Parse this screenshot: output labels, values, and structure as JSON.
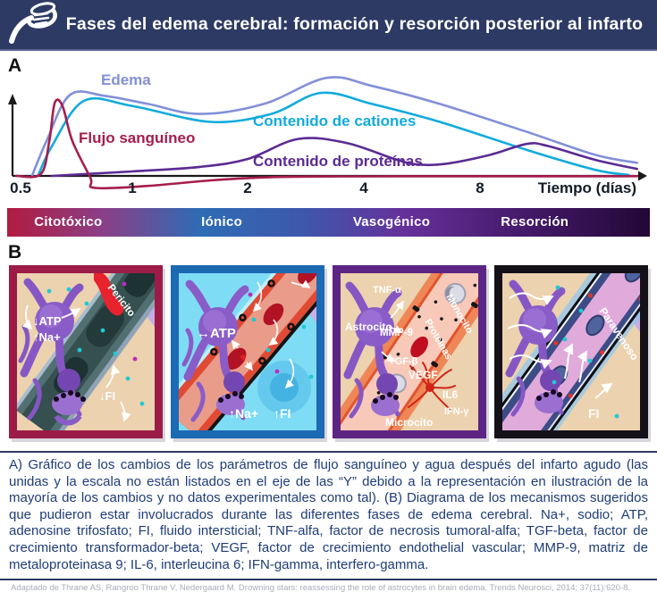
{
  "header": {
    "title": "Fases del edema cerebral: formación y resorción posterior al infarto",
    "logo": "swan-logo"
  },
  "panel_a_label": "A",
  "panel_b_label": "B",
  "chart_data": {
    "type": "line",
    "title": "",
    "x_axis": {
      "label": "Tiempo (días)",
      "scale": "log2",
      "ticks": [
        0.5,
        1,
        2,
        4,
        8
      ],
      "tick_labels": [
        "0.5",
        "1",
        "2",
        "4",
        "8"
      ],
      "range_days": [
        0.5,
        20.5
      ]
    },
    "y_axis": {
      "label": "",
      "note": "unidades y escala no mostradas (representación ilustrativa)",
      "range": [
        -0.15,
        1.05
      ]
    },
    "grid": false,
    "legend_position": "inline-labels",
    "series": [
      {
        "name": "Edema",
        "color": "#8290d8",
        "points": [
          [
            0.55,
            0
          ],
          [
            0.6,
            0.35
          ],
          [
            0.69,
            0.81
          ],
          [
            0.85,
            0.8
          ],
          [
            1.1,
            0.72
          ],
          [
            1.5,
            0.62
          ],
          [
            2.2,
            0.72
          ],
          [
            3.2,
            0.98
          ],
          [
            4.2,
            0.9
          ],
          [
            6.3,
            0.72
          ],
          [
            10.8,
            0.43
          ],
          [
            16,
            0.21
          ],
          [
            20.5,
            0.13
          ]
        ]
      },
      {
        "name": "Contenido de cationes",
        "color": "#11abdc",
        "points": [
          [
            0.57,
            0
          ],
          [
            0.62,
            0.3
          ],
          [
            0.75,
            0.75
          ],
          [
            1.0,
            0.7
          ],
          [
            1.6,
            0.54
          ],
          [
            2.3,
            0.62
          ],
          [
            3.1,
            0.83
          ],
          [
            4.2,
            0.72
          ],
          [
            6.3,
            0.54
          ],
          [
            10.8,
            0.25
          ],
          [
            16,
            0.06
          ],
          [
            19.5,
            0.01
          ]
        ]
      },
      {
        "name": "Contenido de proteínas",
        "color": "#5b2b93",
        "points": [
          [
            0.62,
            0
          ],
          [
            1.0,
            0.045
          ],
          [
            1.5,
            0.09
          ],
          [
            2.0,
            0.17
          ],
          [
            2.7,
            0.37
          ],
          [
            3.6,
            0.33
          ],
          [
            4.8,
            0.17
          ],
          [
            5.5,
            0.115
          ],
          [
            6.5,
            0.12
          ],
          [
            8.5,
            0.21
          ],
          [
            10.6,
            0.32
          ],
          [
            12,
            0.3
          ],
          [
            16,
            0.16
          ],
          [
            20.5,
            0.07
          ]
        ]
      },
      {
        "name": "Flujo sanguíneo",
        "color": "#a51d4d",
        "points": [
          [
            0.5,
            0
          ],
          [
            0.58,
            0.02
          ],
          [
            0.61,
            0.35
          ],
          [
            0.63,
            0.73
          ],
          [
            0.66,
            0.7
          ],
          [
            0.7,
            0.35
          ],
          [
            0.78,
            -0.02
          ],
          [
            0.8,
            -0.12
          ],
          [
            1.1,
            -0.1
          ],
          [
            1.6,
            -0.045
          ],
          [
            2.2,
            -0.015
          ],
          [
            3,
            -0.006
          ],
          [
            5,
            -0.004
          ],
          [
            10,
            -0.004
          ],
          [
            20.5,
            -0.003
          ]
        ]
      }
    ]
  },
  "phase_bar": {
    "phases": [
      {
        "label": "Citotóxico",
        "color": "#b11c40"
      },
      {
        "label": "Iónico",
        "color": "#2e6cb5"
      },
      {
        "label": "Vasogénico",
        "color": "#66309a"
      },
      {
        "label": "Resorción",
        "color": "#451a6b"
      }
    ],
    "end_color": "#230737"
  },
  "panel_b": {
    "panels": [
      {
        "id": "citotoxico",
        "border_color": "#9c1b47",
        "background": "#ecd2ae",
        "labels": {
          "pericito": "Pericito",
          "atp": "↓ATP",
          "na": "↑Na+",
          "fi": "↓FI"
        }
      },
      {
        "id": "ionico",
        "border_color": "#1c69b4",
        "background": "#7fdcf5",
        "labels": {
          "atp": "↔ATP",
          "na": "↑Na+",
          "fi": "↑FI"
        }
      },
      {
        "id": "vasogenico",
        "border_color": "#5d2583",
        "background": "#ecd2ae",
        "labels": {
          "tnf": "TNF-α",
          "astrocito": "Astrocito",
          "mmp": "MMP-9",
          "monocito": "Monocito",
          "proteinas": "Proteínas",
          "tgf": "TGF-β",
          "vegf": "VEGF",
          "il6": "IL6",
          "ifn": "IFN-γ",
          "microcito": "Microcito"
        }
      },
      {
        "id": "resorcion",
        "border_color": "#151118",
        "background": "#ecd2ae",
        "labels": {
          "paravenoso": "Paravenoso",
          "fi": "FI"
        }
      }
    ]
  },
  "caption": {
    "text": "A) Gráfico de los cambios de los parámetros de flujo sanguíneo y agua después del infarto agudo (las unidas y la escala no están listados en el eje de las “Y” debido a la representación en ilustración de la mayoría de los cambios y no datos experimentales como tal). (B) Diagrama de los mecanismos sugeridos que pudieron estar involucrados durante las diferentes fases de edema cerebral. Na+, sodio; ATP, adenosine trifosfato; FI, fluido intersticial; TNF-alfa, factor de necrosis tumoral-alfa; TGF-beta, factor de crecimiento transformador-beta; VEGF, factor de crecimiento endothelial vascular; MMP-9, matriz de metaloproteinasa 9; IL-6, interleucina 6; IFN-gamma, interfero-gamma."
  },
  "footer": {
    "citation": "Adaptado de Thrane AS, Rangroo Thrane V, Nedergaard M. Drowning stars: reassessing the role of astrocytes in brain edema. Trends Neurosci, 2014; 37(11):620-8."
  }
}
